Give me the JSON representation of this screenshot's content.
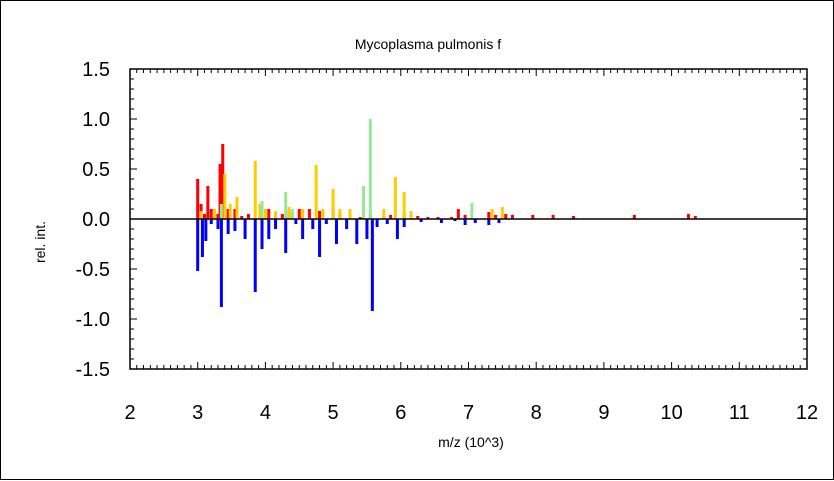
{
  "chart_data": {
    "type": "bar",
    "title": "Mycoplasma pulmonis f",
    "xlabel": "m/z (10^3)",
    "ylabel": "rel. int.",
    "xlim": [
      2,
      12
    ],
    "ylim": [
      -1.5,
      1.5
    ],
    "xticks": [
      "2",
      "3",
      "4",
      "5",
      "6",
      "7",
      "8",
      "9",
      "10",
      "11",
      "12"
    ],
    "yticks": [
      "1.5",
      "1.0",
      "0.5",
      "0.0",
      "-0.5",
      "-1.0",
      "-1.5"
    ],
    "grid": false,
    "series": [
      {
        "color": "#ff0000",
        "points": [
          [
            3.0,
            0.4
          ],
          [
            3.05,
            0.15
          ],
          [
            3.1,
            0.05
          ],
          [
            3.15,
            0.33
          ],
          [
            3.2,
            0.1
          ],
          [
            3.25,
            0.05
          ],
          [
            3.3,
            0.05
          ],
          [
            3.33,
            0.55
          ],
          [
            3.37,
            0.75
          ],
          [
            3.45,
            0.1
          ],
          [
            3.55,
            0.1
          ],
          [
            3.65,
            0.03
          ],
          [
            3.75,
            0.05
          ],
          [
            3.95,
            0.1
          ],
          [
            4.05,
            0.1
          ],
          [
            4.15,
            0.05
          ],
          [
            4.25,
            0.05
          ],
          [
            4.35,
            0.08
          ],
          [
            4.5,
            0.1
          ],
          [
            4.65,
            0.1
          ],
          [
            4.8,
            0.08
          ],
          [
            5.0,
            0.1
          ],
          [
            5.1,
            0.06
          ],
          [
            5.25,
            0.04
          ],
          [
            5.4,
            0.02
          ],
          [
            5.55,
            0.05
          ],
          [
            5.75,
            0.03
          ],
          [
            5.85,
            0.04
          ],
          [
            6.05,
            0.05
          ],
          [
            6.15,
            0.04
          ],
          [
            6.25,
            0.03
          ],
          [
            6.4,
            0.02
          ],
          [
            6.55,
            0.02
          ],
          [
            6.75,
            0.02
          ],
          [
            6.85,
            0.1
          ],
          [
            6.95,
            0.04
          ],
          [
            7.3,
            0.07
          ],
          [
            7.4,
            0.04
          ],
          [
            7.55,
            0.05
          ],
          [
            7.65,
            0.04
          ],
          [
            7.95,
            0.04
          ],
          [
            8.25,
            0.04
          ],
          [
            8.55,
            0.03
          ],
          [
            9.45,
            0.04
          ],
          [
            10.25,
            0.05
          ],
          [
            10.35,
            0.03
          ]
        ]
      },
      {
        "color": "#ffcc00",
        "points": [
          [
            3.05,
            0.08
          ],
          [
            3.25,
            0.1
          ],
          [
            3.4,
            0.45
          ],
          [
            3.48,
            0.15
          ],
          [
            3.58,
            0.22
          ],
          [
            3.85,
            0.58
          ],
          [
            3.92,
            0.15
          ],
          [
            4.0,
            0.1
          ],
          [
            4.15,
            0.08
          ],
          [
            4.35,
            0.12
          ],
          [
            4.55,
            0.1
          ],
          [
            4.75,
            0.54
          ],
          [
            4.85,
            0.1
          ],
          [
            5.0,
            0.3
          ],
          [
            5.1,
            0.1
          ],
          [
            5.25,
            0.1
          ],
          [
            5.45,
            0.15
          ],
          [
            5.75,
            0.1
          ],
          [
            5.92,
            0.42
          ],
          [
            6.05,
            0.27
          ],
          [
            6.15,
            0.08
          ],
          [
            7.35,
            0.1
          ],
          [
            7.5,
            0.12
          ]
        ]
      },
      {
        "color": "#99e699",
        "points": [
          [
            3.35,
            0.15
          ],
          [
            3.95,
            0.18
          ],
          [
            4.3,
            0.27
          ],
          [
            4.4,
            0.1
          ],
          [
            5.45,
            0.33
          ],
          [
            5.55,
            1.0
          ],
          [
            7.05,
            0.16
          ]
        ]
      },
      {
        "color": "#0000ff",
        "points": [
          [
            3.0,
            -0.52
          ],
          [
            3.07,
            -0.38
          ],
          [
            3.12,
            -0.22
          ],
          [
            3.2,
            -0.05
          ],
          [
            3.3,
            -0.1
          ],
          [
            3.35,
            -0.88
          ],
          [
            3.45,
            -0.15
          ],
          [
            3.55,
            -0.12
          ],
          [
            3.7,
            -0.2
          ],
          [
            3.85,
            -0.73
          ],
          [
            3.95,
            -0.3
          ],
          [
            4.05,
            -0.2
          ],
          [
            4.15,
            -0.1
          ],
          [
            4.3,
            -0.34
          ],
          [
            4.45,
            -0.05
          ],
          [
            4.55,
            -0.2
          ],
          [
            4.7,
            -0.1
          ],
          [
            4.8,
            -0.38
          ],
          [
            4.9,
            -0.05
          ],
          [
            5.05,
            -0.25
          ],
          [
            5.2,
            -0.1
          ],
          [
            5.35,
            -0.25
          ],
          [
            5.5,
            -0.2
          ],
          [
            5.58,
            -0.92
          ],
          [
            5.65,
            -0.08
          ],
          [
            5.8,
            -0.05
          ],
          [
            5.95,
            -0.2
          ],
          [
            6.05,
            -0.08
          ],
          [
            6.3,
            -0.03
          ],
          [
            6.6,
            -0.04
          ],
          [
            6.8,
            -0.02
          ],
          [
            6.95,
            -0.06
          ],
          [
            7.1,
            -0.04
          ],
          [
            7.3,
            -0.06
          ],
          [
            7.45,
            -0.04
          ]
        ]
      }
    ]
  }
}
